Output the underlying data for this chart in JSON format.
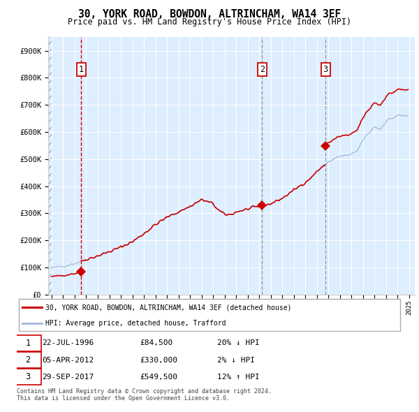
{
  "title": "30, YORK ROAD, BOWDON, ALTRINCHAM, WA14 3EF",
  "subtitle": "Price paid vs. HM Land Registry's House Price Index (HPI)",
  "ylim": [
    0,
    950000
  ],
  "yticks": [
    0,
    100000,
    200000,
    300000,
    400000,
    500000,
    600000,
    700000,
    800000,
    900000
  ],
  "ytick_labels": [
    "£0",
    "£100K",
    "£200K",
    "£300K",
    "£400K",
    "£500K",
    "£600K",
    "£700K",
    "£800K",
    "£900K"
  ],
  "xlim_start": 1993.7,
  "xlim_end": 2025.5,
  "sale_dates": [
    1996.55,
    2012.26,
    2017.75
  ],
  "sale_prices": [
    84500,
    330000,
    549500
  ],
  "sale_labels": [
    "1",
    "2",
    "3"
  ],
  "hpi_line_color": "#aabbdd",
  "sale_line_color": "#cc0000",
  "sale_dot_color": "#cc0000",
  "vline1_color": "#cc0000",
  "vline2_color": "#999999",
  "background_color": "#ddeeff",
  "grid_color": "#ffffff",
  "legend_label_red": "30, YORK ROAD, BOWDON, ALTRINCHAM, WA14 3EF (detached house)",
  "legend_label_blue": "HPI: Average price, detached house, Trafford",
  "table_entries": [
    {
      "num": "1",
      "date": "22-JUL-1996",
      "price": "£84,500",
      "hpi": "20% ↓ HPI"
    },
    {
      "num": "2",
      "date": "05-APR-2012",
      "price": "£330,000",
      "hpi": "2% ↓ HPI"
    },
    {
      "num": "3",
      "date": "29-SEP-2017",
      "price": "£549,500",
      "hpi": "12% ↑ HPI"
    }
  ],
  "footnote1": "Contains HM Land Registry data © Crown copyright and database right 2024.",
  "footnote2": "This data is licensed under the Open Government Licence v3.0."
}
